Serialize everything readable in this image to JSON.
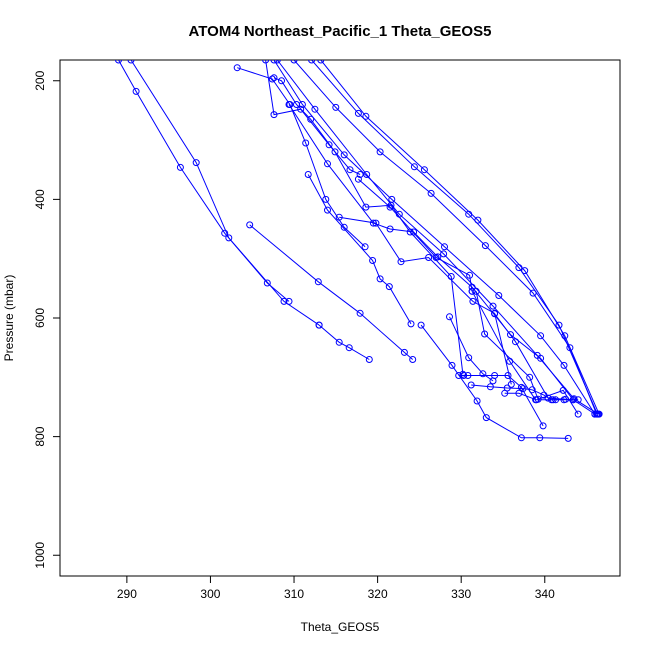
{
  "chart_data": {
    "type": "line",
    "title": "ATOM4 Northeast_Pacific_1 Theta_GEOS5",
    "xlabel": "Theta_GEOS5",
    "ylabel": "Pressure (mbar)",
    "xlim": [
      282,
      349
    ],
    "ylim": [
      1035,
      165
    ],
    "y_reversed": true,
    "xticks": [
      290,
      300,
      310,
      320,
      330,
      340
    ],
    "yticks": [
      200,
      400,
      600,
      800,
      1000
    ],
    "grid": false,
    "color": "#0000ff",
    "marker": "open-circle",
    "series": [
      {
        "x": [
          290.5,
          298.3,
          302.2,
          308.8,
          313.0
        ],
        "y": [
          165,
          338,
          465,
          572,
          612
        ]
      },
      {
        "x": [
          313.0,
          315.4,
          316.6,
          319.0
        ],
        "y": [
          612,
          641,
          650,
          670
        ]
      },
      {
        "x": [
          289.0,
          291.1,
          296.4,
          301.7,
          306.8,
          309.4
        ],
        "y": [
          165,
          218,
          346,
          457,
          541,
          572
        ]
      },
      {
        "x": [
          304.7,
          312.9,
          317.9,
          323.2,
          324.2
        ],
        "y": [
          443,
          539,
          592,
          658,
          670
        ]
      },
      {
        "x": [
          303.2,
          307.4,
          309.5,
          311.4,
          313.8,
          316.0,
          318.5
        ],
        "y": [
          178,
          197,
          240,
          305,
          400,
          447,
          480
        ]
      },
      {
        "x": [
          306.6,
          307.6,
          310.8,
          314.2,
          316.7,
          317.9
        ],
        "y": [
          165,
          257,
          248,
          308,
          350,
          358
        ]
      },
      {
        "x": [
          311.7,
          314.0,
          319.4,
          320.3,
          321.4,
          324.0
        ],
        "y": [
          358,
          418,
          503,
          534,
          547,
          610
        ]
      },
      {
        "x": [
          307.6,
          308.5,
          310.3,
          312.0,
          314.9,
          318.6,
          321.6,
          323.9,
          328.8,
          330.2
        ],
        "y": [
          195,
          200,
          240,
          265,
          320,
          413,
          410,
          455,
          530,
          695
        ]
      },
      {
        "x": [
          315.4,
          319.8,
          322.8,
          326.1,
          331.4,
          334.0,
          336.0
        ],
        "y": [
          430,
          440,
          505,
          498,
          572,
          592,
          712
        ]
      },
      {
        "x": [
          317.7,
          321.5,
          327.0,
          331.0,
          331.3
        ],
        "y": [
          366,
          413,
          498,
          528,
          555
        ]
      },
      {
        "x": [
          331.3,
          335.8,
          338.9
        ],
        "y": [
          555,
          673,
          738
        ]
      },
      {
        "x": [
          328.6,
          330.9,
          332.6,
          333.8
        ],
        "y": [
          598,
          667,
          694,
          706
        ]
      },
      {
        "x": [
          334.0,
          336.5,
          340.4,
          343.4
        ],
        "y": [
          593,
          640,
          735,
          738
        ]
      },
      {
        "x": [
          331.8,
          332.8,
          338.2,
          339.2,
          342.2,
          344.0
        ],
        "y": [
          555,
          627,
          700,
          737,
          722,
          762
        ]
      },
      {
        "x": [
          325.2,
          328.9,
          331.9,
          333.0,
          337.2,
          339.4,
          342.8
        ],
        "y": [
          612,
          680,
          740,
          768,
          802,
          802,
          803
        ]
      },
      {
        "x": [
          329.7,
          330.3,
          330.8,
          334.0,
          335.6,
          337.2,
          339.8
        ],
        "y": [
          697,
          697,
          697,
          697,
          697,
          717,
          782
        ]
      },
      {
        "x": [
          309.4,
          314.0,
          319.5,
          321.5,
          324.3,
          327.2,
          331.3,
          335.9,
          339.5,
          343.4,
          346.0
        ],
        "y": [
          240,
          340,
          440,
          450,
          455,
          497,
          548,
          628,
          668,
          738,
          762
        ]
      },
      {
        "x": [
          308.0,
          312.5,
          318.7,
          322.6,
          327.9,
          333.8,
          339.1,
          343.5,
          346.4
        ],
        "y": [
          165,
          248,
          358,
          425,
          492,
          580,
          663,
          736,
          762
        ]
      },
      {
        "x": [
          307.6,
          311.0,
          316.0,
          321.7,
          328.0,
          334.5,
          339.5,
          342.3,
          346.0
        ],
        "y": [
          165,
          240,
          325,
          400,
          480,
          562,
          630,
          680,
          762
        ]
      },
      {
        "x": [
          310.0,
          315.0,
          320.3,
          326.4,
          332.9,
          338.6,
          343.0,
          346.2
        ],
        "y": [
          165,
          245,
          320,
          390,
          478,
          558,
          650,
          762
        ]
      },
      {
        "x": [
          312.1,
          317.7,
          324.4,
          330.9,
          336.9,
          341.7,
          346.3
        ],
        "y": [
          165,
          255,
          345,
          425,
          515,
          612,
          762
        ]
      },
      {
        "x": [
          313.2,
          318.6,
          325.6,
          332.0,
          337.6,
          342.4,
          346.5
        ],
        "y": [
          165,
          260,
          350,
          435,
          520,
          630,
          762
        ]
      },
      {
        "x": [
          335.2,
          336.9,
          339.0,
          341.0,
          342.5
        ],
        "y": [
          727,
          727,
          738,
          738,
          737
        ]
      },
      {
        "x": [
          331.2,
          333.5,
          335.5,
          337.4,
          338.5,
          339.9,
          340.8,
          341.3,
          342.3,
          344.0
        ],
        "y": [
          713,
          716,
          718,
          719,
          721,
          730,
          738,
          738,
          738,
          738
        ]
      }
    ]
  }
}
